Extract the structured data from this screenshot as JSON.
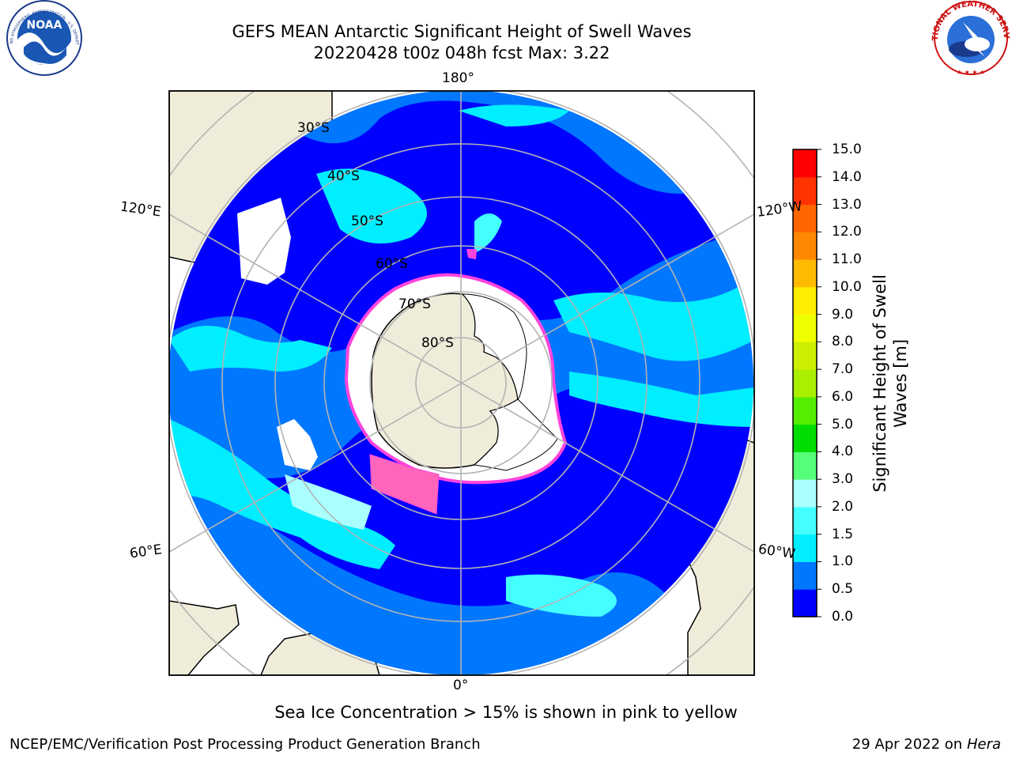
{
  "header": {
    "title_line1": "GEFS MEAN Antarctic Significant Height of Swell Waves",
    "title_line2": "20220428 t00z 048h fcst   Max: 3.22",
    "noaa_logo": "NOAA",
    "noaa_ring": "NATIONAL OCEANIC AND ATMOSPHERIC ADMINISTRATION · U.S. DEPARTMENT OF COMMERCE",
    "nws_ring": "NATIONAL WEATHER SERVICE"
  },
  "map": {
    "projection": "south-polar-stereographic",
    "lon_labels": {
      "top": "180°",
      "bottom": "0°",
      "upper_left": "120°E",
      "upper_right": "120°W",
      "lower_left": "60°E",
      "lower_right": "60°W"
    },
    "lat_labels": [
      "30°S",
      "40°S",
      "50°S",
      "60°S",
      "70°S",
      "80°S"
    ],
    "colors": {
      "land": "#efedda",
      "ice_shelf": "#ffffff",
      "sea_ice_edge": "#ff44dd",
      "grid": "#b3b3b3"
    }
  },
  "colorbar": {
    "title_line1": "Significant Height of Swell",
    "title_line2": "Waves [m]",
    "ticks": [
      "0.0",
      "0.5",
      "1.0",
      "1.5",
      "2.0",
      "3.0",
      "4.0",
      "5.0",
      "6.0",
      "7.0",
      "8.0",
      "9.0",
      "10.0",
      "11.0",
      "12.0",
      "13.0",
      "14.0",
      "15.0"
    ],
    "colors": [
      "#0000ff",
      "#0077ff",
      "#00eeff",
      "#44ffff",
      "#aaffff",
      "#55ff77",
      "#00dd00",
      "#55ee00",
      "#aaee00",
      "#ccee00",
      "#eeff00",
      "#ffee00",
      "#ffbb00",
      "#ff8800",
      "#ff6600",
      "#ff3300",
      "#ff0000"
    ]
  },
  "caption": "Sea Ice Concentration > 15% is shown in pink to yellow",
  "footer": {
    "left": "NCEP/EMC/Verification Post Processing Product Generation Branch",
    "right_prefix": "29 Apr 2022 on ",
    "right_italic": "Hera"
  }
}
